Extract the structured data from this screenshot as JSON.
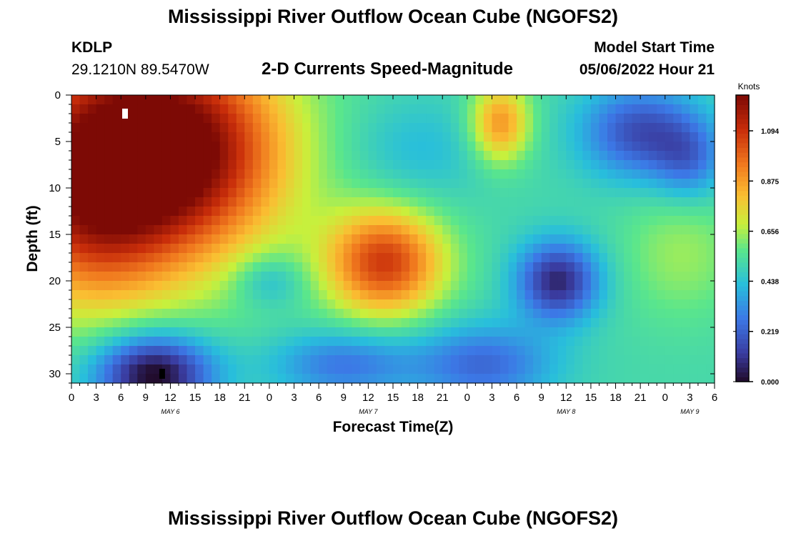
{
  "page": {
    "title_top": "Mississippi River Outflow Ocean Cube (NGOFS2)",
    "title_bottom": "Mississippi River Outflow Ocean Cube (NGOFS2)",
    "station": {
      "id": "KDLP",
      "coords": "29.1210N  89.5470W"
    },
    "model_start": {
      "label": "Model Start Time",
      "value": "05/06/2022 Hour 21"
    }
  },
  "chart_data": {
    "type": "heatmap",
    "title": "2-D Currents Speed-Magnitude",
    "xlabel": "Forecast Time(Z)",
    "ylabel": "Depth (ft)",
    "xlim": [
      0,
      78
    ],
    "ylim": [
      31,
      0
    ],
    "x_ticks": [
      {
        "label": "0"
      },
      {
        "label": "3"
      },
      {
        "label": "6"
      },
      {
        "label": "9"
      },
      {
        "label": "12"
      },
      {
        "label": "15"
      },
      {
        "label": "18"
      },
      {
        "label": "21"
      },
      {
        "label": "0"
      },
      {
        "label": "3"
      },
      {
        "label": "6"
      },
      {
        "label": "9"
      },
      {
        "label": "12"
      },
      {
        "label": "15"
      },
      {
        "label": "18"
      },
      {
        "label": "21"
      },
      {
        "label": "0"
      },
      {
        "label": "3"
      },
      {
        "label": "6"
      },
      {
        "label": "9"
      },
      {
        "label": "12"
      },
      {
        "label": "15"
      },
      {
        "label": "18"
      },
      {
        "label": "21"
      },
      {
        "label": "0"
      },
      {
        "label": "3"
      },
      {
        "label": "6"
      }
    ],
    "day_labels": [
      {
        "label": "MAY 6",
        "x": 12
      },
      {
        "label": "MAY 7",
        "x": 36
      },
      {
        "label": "MAY 8",
        "x": 60
      },
      {
        "label": "MAY 9",
        "x": 75
      }
    ],
    "y_ticks": [
      0,
      5,
      10,
      15,
      20,
      25,
      30
    ],
    "colorbar": {
      "unit": "Knots",
      "min": 0.0,
      "max": 1.25,
      "tick_labels": [
        "0.000",
        "0.219",
        "0.438",
        "0.656",
        "0.875",
        "1.094"
      ],
      "tick_values": [
        0.0,
        0.219,
        0.438,
        0.656,
        0.875,
        1.094
      ]
    },
    "field": {
      "background": 0.52,
      "components": [
        {
          "x": 7,
          "y": 6,
          "sx": 11,
          "sy": 9,
          "a": 0.75
        },
        {
          "x": 2,
          "y": 14,
          "sx": 7,
          "sy": 7,
          "a": 0.25
        },
        {
          "x": 16,
          "y": 6,
          "sx": 8,
          "sy": 7,
          "a": 0.25
        },
        {
          "x": 38,
          "y": 18,
          "sx": 5,
          "sy": 4,
          "a": 0.55
        },
        {
          "x": 52,
          "y": 3,
          "sx": 2.5,
          "sy": 3,
          "a": 0.38
        },
        {
          "x": 10,
          "y": 30,
          "sx": 5,
          "sy": 3,
          "a": -0.55
        },
        {
          "x": 33,
          "y": 29,
          "sx": 6,
          "sy": 2.5,
          "a": -0.25
        },
        {
          "x": 50,
          "y": 29,
          "sx": 6,
          "sy": 3,
          "a": -0.28
        },
        {
          "x": 59,
          "y": 20,
          "sx": 3.5,
          "sy": 3,
          "a": -0.45
        },
        {
          "x": 69,
          "y": 4,
          "sx": 5,
          "sy": 3.5,
          "a": -0.35
        },
        {
          "x": 75,
          "y": 7,
          "sx": 3,
          "sy": 3,
          "a": -0.22
        },
        {
          "x": 42,
          "y": 6,
          "sx": 6,
          "sy": 4,
          "a": -0.1
        },
        {
          "x": 24,
          "y": 20,
          "sx": 3,
          "sy": 2,
          "a": -0.15
        },
        {
          "x": 74,
          "y": 17,
          "sx": 5,
          "sy": 5,
          "a": 0.12
        }
      ]
    },
    "markers": [
      {
        "kind": "max",
        "x": 6.5,
        "y": 2
      },
      {
        "kind": "min",
        "x": 11,
        "y": 30
      }
    ]
  }
}
